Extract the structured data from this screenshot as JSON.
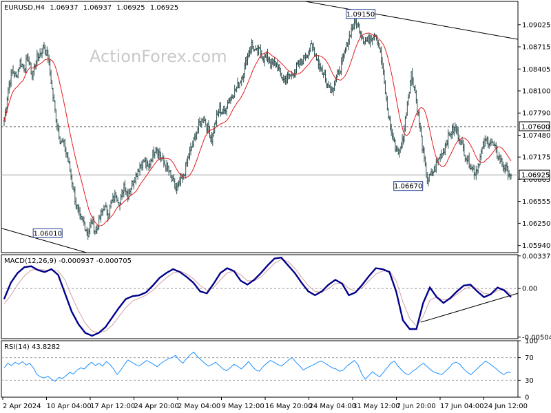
{
  "chart_data": [
    {
      "type": "candlestick",
      "symbol_line": {
        "symbol": "EURUSD,H4",
        "open": "1.06937",
        "high": "1.06937",
        "low": "1.06925",
        "close": "1.06925"
      },
      "watermark": "ActionForex.com",
      "ylim": [
        1.0584,
        1.0935
      ],
      "y_ticks": [
        "1.09025",
        "1.08715",
        "1.08405",
        "1.08100",
        "1.07790",
        "1.07480",
        "1.07175",
        "1.06865",
        "1.06555",
        "1.06250",
        "1.05940"
      ],
      "current_price": {
        "label": "1.06925",
        "value": 1.06925
      },
      "horizontal_line": {
        "label": "1.07600",
        "value": 1.076,
        "style": "dashed"
      },
      "annotations": [
        {
          "label": "1.09150",
          "value": 1.0915,
          "x": "31 May 2024 00:00"
        },
        {
          "label": "1.06670",
          "value": 1.0667,
          "x": "7 Jun 2024 20:00"
        },
        {
          "label": "1.06010",
          "value": 1.0601,
          "x": "9 Apr 2024 12:00"
        }
      ],
      "trendlines": [
        {
          "name": "upper channel",
          "from": {
            "x": "22 May 2024 00:00",
            "y": 1.0935
          },
          "to": {
            "x": "26 Jun 2024 00:00",
            "y": 1.0882
          }
        },
        {
          "name": "lower channel",
          "from": {
            "x": "2 Apr 2024 00:00",
            "y": 1.0618
          },
          "to": {
            "x": "16 Apr 2024 00:00",
            "y": 1.0584
          }
        }
      ],
      "moving_average_color": "#e41a1c",
      "close_series": [
        1.0768,
        1.0812,
        1.0838,
        1.0829,
        1.085,
        1.0843,
        1.0856,
        1.0831,
        1.0853,
        1.0862,
        1.0872,
        1.0858,
        1.0812,
        1.0772,
        1.0742,
        1.0735,
        1.0712,
        1.0684,
        1.0652,
        1.0632,
        1.0625,
        1.061,
        1.0628,
        1.0612,
        1.0633,
        1.0648,
        1.0638,
        1.0655,
        1.0666,
        1.0652,
        1.0679,
        1.0665,
        1.068,
        1.0692,
        1.0706,
        1.0712,
        1.0702,
        1.0718,
        1.0733,
        1.072,
        1.0709,
        1.0702,
        1.0685,
        1.0672,
        1.068,
        1.0692,
        1.0715,
        1.0732,
        1.0748,
        1.0765,
        1.0772,
        1.0758,
        1.0743,
        1.0768,
        1.0785,
        1.0778,
        1.0794,
        1.0803,
        1.0812,
        1.0822,
        1.0838,
        1.0858,
        1.0875,
        1.0863,
        1.0866,
        1.0855,
        1.0857,
        1.0845,
        1.085,
        1.0836,
        1.0825,
        1.0829,
        1.0832,
        1.0841,
        1.0848,
        1.0855,
        1.0864,
        1.0872,
        1.0862,
        1.0845,
        1.0834,
        1.0821,
        1.0811,
        1.0825,
        1.0838,
        1.0856,
        1.0878,
        1.0895,
        1.0905,
        1.0898,
        1.0882,
        1.0879,
        1.0886,
        1.0892,
        1.0872,
        1.0832,
        1.0784,
        1.0752,
        1.0732,
        1.0724,
        1.0745,
        1.0793,
        1.0834,
        1.0808,
        1.0765,
        1.0722,
        1.0683,
        1.0693,
        1.0702,
        1.0718,
        1.0725,
        1.0742,
        1.0752,
        1.0758,
        1.0745,
        1.0729,
        1.0715,
        1.0705,
        1.0695,
        1.0712,
        1.0733,
        1.0741,
        1.0738,
        1.0728,
        1.0716,
        1.0706,
        1.0699,
        1.0692
      ],
      "x_tick_labels": [
        "2 Apr 2024",
        "10 Apr 04:00",
        "17 Apr 12:00",
        "24 Apr 20:00",
        "2 May 04:00",
        "9 May 12:00",
        "16 May 20:00",
        "24 May 04:00",
        "31 May 12:00",
        "7 Jun 20:00",
        "17 Jun 04:00",
        "24 Jun 12:00"
      ],
      "grid": false
    },
    {
      "type": "line",
      "label": "MACD(12,26,9) -0.000937 -0.000705",
      "ylim": [
        -0.0052,
        0.0035
      ],
      "y_ticks": [
        "0.003375",
        "0.00",
        "-0.00504"
      ],
      "current_value_label": "0.00",
      "series": [
        {
          "name": "MACD",
          "color": "#00008b",
          "values": [
            -0.0011,
            0.0006,
            0.0016,
            0.0022,
            0.0023,
            0.0019,
            0.0017,
            0.002,
            0.0014,
            -0.0005,
            -0.0024,
            -0.0037,
            -0.0046,
            -0.0049,
            -0.0046,
            -0.004,
            -0.003,
            -0.002,
            -0.0011,
            -0.0008,
            -0.0007,
            -0.0004,
            0.0003,
            0.0011,
            0.0016,
            0.002,
            0.0017,
            0.0012,
            0.0006,
            -0.0003,
            -0.0005,
            0.0005,
            0.0016,
            0.0021,
            0.0018,
            0.0008,
            0.0004,
            0.0009,
            0.0016,
            0.0024,
            0.0031,
            0.0032,
            0.0024,
            0.0016,
            0.0006,
            -0.0003,
            -0.0007,
            -0.0003,
            0.0004,
            0.0009,
            0.0005,
            -0.0007,
            -0.0004,
            0.0004,
            0.0013,
            0.0021,
            0.002,
            0.0017,
            -0.0003,
            -0.0033,
            -0.0042,
            -0.0042,
            -0.0015,
            0.0001,
            -0.0009,
            -0.0015,
            -0.001,
            -0.0003,
            0.0003,
            0.0004,
            -0.0003,
            -0.0009,
            -0.0006,
            0.0001,
            -0.0002,
            -0.0009
          ]
        },
        {
          "name": "Signal",
          "color": "#d4a0a0",
          "values": [
            -0.0016,
            -0.0007,
            0.0004,
            0.0013,
            0.0019,
            0.002,
            0.0019,
            0.0019,
            0.0018,
            0.0009,
            -0.0008,
            -0.0023,
            -0.0036,
            -0.0044,
            -0.0046,
            -0.0044,
            -0.0038,
            -0.0029,
            -0.002,
            -0.0013,
            -0.001,
            -0.0007,
            -0.0002,
            0.0005,
            0.0011,
            0.0016,
            0.0018,
            0.0015,
            0.001,
            0.0003,
            -0.0002,
            0.0001,
            0.0009,
            0.0016,
            0.0018,
            0.0014,
            0.0008,
            0.0008,
            0.0012,
            0.0019,
            0.0026,
            0.003,
            0.0028,
            0.0021,
            0.0012,
            0.0003,
            -0.0003,
            -0.0004,
            0.0,
            0.0005,
            0.0006,
            0.0,
            -0.0003,
            0.0001,
            0.0008,
            0.0015,
            0.0018,
            0.0018,
            0.0008,
            -0.0014,
            -0.0031,
            -0.0039,
            -0.0029,
            -0.0012,
            -0.0009,
            -0.0012,
            -0.0011,
            -0.0006,
            -0.0001,
            0.0002,
            0.0,
            -0.0005,
            -0.0006,
            -0.0002,
            -0.0001,
            -0.0006
          ]
        }
      ],
      "trendline": {
        "from": {
          "x": "10 Jun 2024 00:00",
          "y": -0.0035
        },
        "to": {
          "x": "26 Jun 2024 00:00",
          "y": -0.0005
        }
      }
    },
    {
      "type": "line",
      "label": "RSI(14) 43.8282",
      "ylim": [
        0,
        100
      ],
      "y_ticks": [
        "100",
        "70",
        "30",
        "0"
      ],
      "levels": [
        70,
        30
      ],
      "series": [
        {
          "name": "RSI",
          "color": "#1e90ff",
          "values": [
            52,
            60,
            56,
            62,
            58,
            63,
            57,
            60,
            52,
            40,
            36,
            34,
            37,
            32,
            28,
            35,
            33,
            38,
            44,
            41,
            48,
            52,
            50,
            57,
            62,
            56,
            60,
            55,
            63,
            58,
            50,
            40,
            48,
            58,
            66,
            62,
            58,
            55,
            60,
            65,
            62,
            58,
            54,
            60,
            64,
            68,
            70,
            74,
            66,
            60,
            68,
            75,
            80,
            72,
            66,
            60,
            55,
            58,
            62,
            56,
            50,
            47,
            52,
            58,
            55,
            50,
            56,
            63,
            55,
            48,
            46,
            54,
            60,
            65,
            62,
            58,
            55,
            60,
            66,
            70,
            62,
            56,
            48,
            52,
            55,
            58,
            62,
            64,
            60,
            56,
            52,
            50,
            46,
            48,
            55,
            60,
            65,
            58,
            42,
            32,
            38,
            45,
            40,
            36,
            44,
            52,
            60,
            64,
            55,
            48,
            42,
            40,
            46,
            50,
            56,
            60,
            54,
            48,
            44,
            42,
            40,
            46,
            52,
            60,
            62,
            58,
            50,
            44,
            40,
            46,
            52,
            58,
            64,
            60,
            55,
            50,
            44,
            40,
            44,
            43.8
          ]
        }
      ]
    }
  ]
}
